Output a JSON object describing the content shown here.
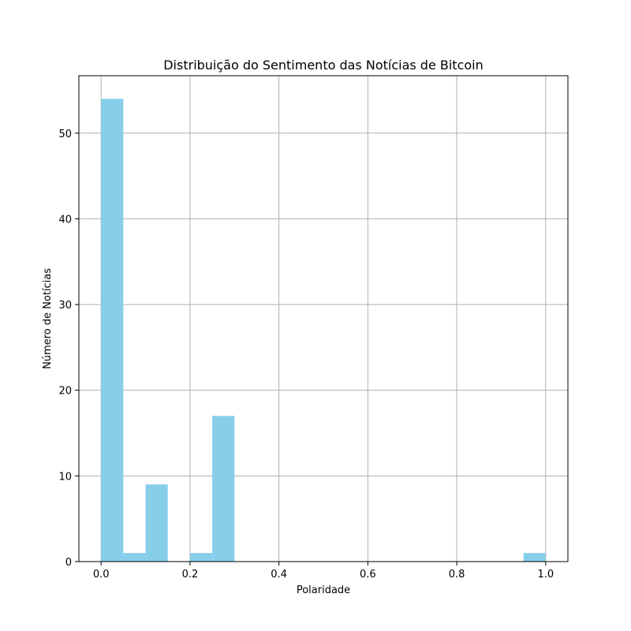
{
  "chart_data": {
    "type": "bar",
    "title": "Distribuição do Sentimento das Notícias de Bitcoin",
    "xlabel": "Polaridade",
    "ylabel": "Número de Notícias",
    "bin_edges": [
      0.0,
      0.05,
      0.1,
      0.15,
      0.2,
      0.25,
      0.3,
      0.35,
      0.4,
      0.45,
      0.5,
      0.55,
      0.6,
      0.65,
      0.7,
      0.75,
      0.8,
      0.85,
      0.9,
      0.95,
      1.0
    ],
    "counts": [
      54,
      1,
      9,
      0,
      1,
      17,
      0,
      0,
      0,
      0,
      0,
      0,
      0,
      0,
      0,
      0,
      0,
      0,
      0,
      1
    ],
    "xlim": [
      -0.05,
      1.05
    ],
    "ylim": [
      0,
      56.7
    ],
    "xticks": [
      0.0,
      0.2,
      0.4,
      0.6,
      0.8,
      1.0
    ],
    "xtick_labels": [
      "0.0",
      "0.2",
      "0.4",
      "0.6",
      "0.8",
      "1.0"
    ],
    "yticks": [
      0,
      10,
      20,
      30,
      40,
      50
    ],
    "ytick_labels": [
      "0",
      "10",
      "20",
      "30",
      "40",
      "50"
    ],
    "grid": true,
    "colors": {
      "bar": "#87ceeb",
      "grid": "#b0b0b0",
      "axis": "#000000"
    }
  }
}
